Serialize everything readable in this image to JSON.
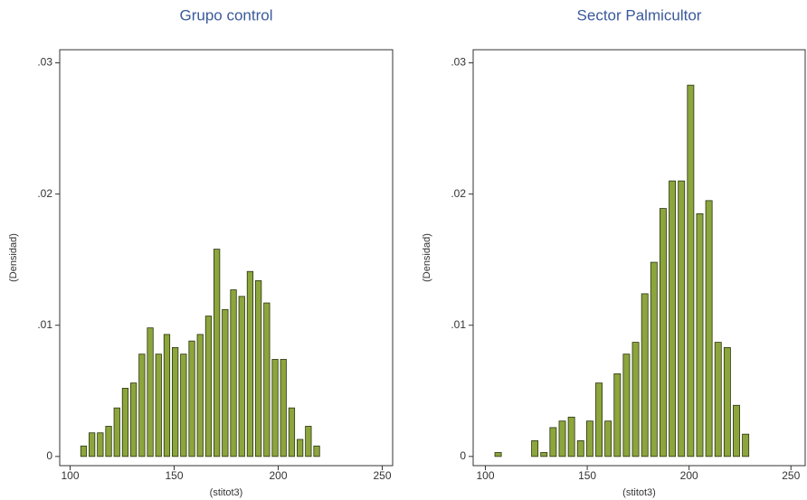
{
  "chart_data": [
    {
      "type": "histogram",
      "title": "Grupo control",
      "xlabel": "(stitot3)",
      "ylabel": "(Densidad)",
      "color": "#8ca53c",
      "bins": [
        104.5,
        108.5,
        112.5,
        116.5,
        120.5,
        124.5,
        128.5,
        132.5,
        136.5,
        140.5,
        144.5,
        148.5,
        152.5,
        156.5,
        160.5,
        164.5,
        168.5,
        172.5,
        176.5,
        180.5,
        184.5,
        188.5,
        192.5,
        196.5,
        200.5,
        204.5,
        208.5,
        212.5,
        216.5,
        220.5
      ],
      "values": [
        0.0008,
        0.0018,
        0.0018,
        0.0023,
        0.0037,
        0.0052,
        0.0056,
        0.0078,
        0.0098,
        0.0078,
        0.0093,
        0.0083,
        0.0078,
        0.0088,
        0.0093,
        0.0107,
        0.0158,
        0.0112,
        0.0127,
        0.0122,
        0.0141,
        0.0134,
        0.0117,
        0.0074,
        0.0074,
        0.0037,
        0.0013,
        0.0023,
        0.0008
      ],
      "xlim": [
        95,
        255
      ],
      "xticks": [
        100,
        150,
        200,
        250
      ],
      "ylim": [
        -0.0007,
        0.031
      ],
      "yticks": [
        0,
        {
          "value": 0.01,
          "label": ".01"
        },
        {
          "value": 0.02,
          "label": ".02"
        },
        {
          "value": 0.03,
          "label": ".03"
        }
      ]
    },
    {
      "type": "histogram",
      "title": "Sector Palmicultor",
      "xlabel": "(stitot3)",
      "ylabel": "(Densidad)",
      "color": "#8ca53c",
      "bins": [
        104,
        108.5,
        113,
        117.5,
        122,
        126.5,
        131,
        135.5,
        140,
        144.5,
        149,
        153.5,
        158,
        162.5,
        167,
        171.5,
        176,
        180.5,
        185,
        189.5,
        194,
        198.5,
        203,
        207.5,
        212,
        216.5,
        221,
        225.5,
        230
      ],
      "values": [
        0.0003,
        0,
        0,
        0,
        0.0012,
        0.0003,
        0.0022,
        0.0027,
        0.003,
        0.0012,
        0.0027,
        0.0056,
        0.0027,
        0.0063,
        0.0078,
        0.0087,
        0.0124,
        0.0148,
        0.0189,
        0.021,
        0.021,
        0.0283,
        0.0185,
        0.0195,
        0.0087,
        0.0083,
        0.0039,
        0.0017
      ],
      "xlim": [
        94,
        257
      ],
      "xticks": [
        100,
        150,
        200,
        250
      ],
      "ylim": [
        -0.0007,
        0.031
      ],
      "yticks": [
        0,
        {
          "value": 0.01,
          "label": ".01"
        },
        {
          "value": 0.02,
          "label": ".02"
        },
        {
          "value": 0.03,
          "label": ".03"
        }
      ]
    }
  ]
}
